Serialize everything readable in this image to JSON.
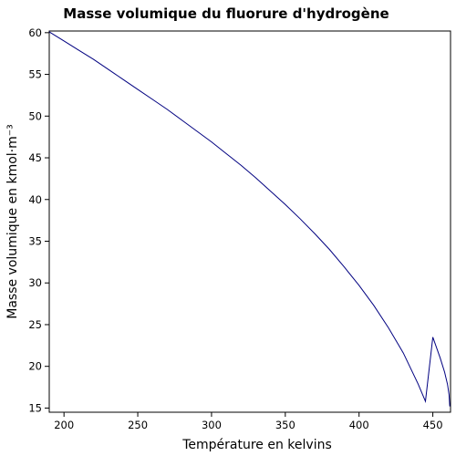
{
  "chart_data": {
    "type": "line",
    "title": "Masse volumique du fluorure d'hydrogène",
    "xlabel": "Température en kelvins",
    "ylabel": "Masse volumique en kmol·m⁻³",
    "xlim": [
      190,
      462
    ],
    "ylim": [
      14.5,
      60.2
    ],
    "xticks": [
      200,
      250,
      300,
      350,
      400,
      450
    ],
    "yticks": [
      15,
      20,
      25,
      30,
      35,
      40,
      45,
      50,
      55,
      60
    ],
    "grid": false,
    "series": [
      {
        "color": "#000080",
        "x": [
          190,
          200,
          210,
          220,
          230,
          240,
          250,
          260,
          270,
          280,
          290,
          300,
          310,
          320,
          330,
          340,
          350,
          360,
          370,
          380,
          390,
          400,
          410,
          420,
          430,
          440,
          445,
          450,
          455,
          458,
          460,
          461,
          461.5
        ],
        "y": [
          60.1,
          59.0,
          57.9,
          56.8,
          55.6,
          54.4,
          53.2,
          52.0,
          50.8,
          49.5,
          48.2,
          46.9,
          45.5,
          44.1,
          42.6,
          41.0,
          39.4,
          37.7,
          35.9,
          34.0,
          31.9,
          29.7,
          27.3,
          24.6,
          21.6,
          17.9,
          15.8,
          23.5,
          21.0,
          19.3,
          17.8,
          16.6,
          15.2
        ]
      }
    ]
  }
}
